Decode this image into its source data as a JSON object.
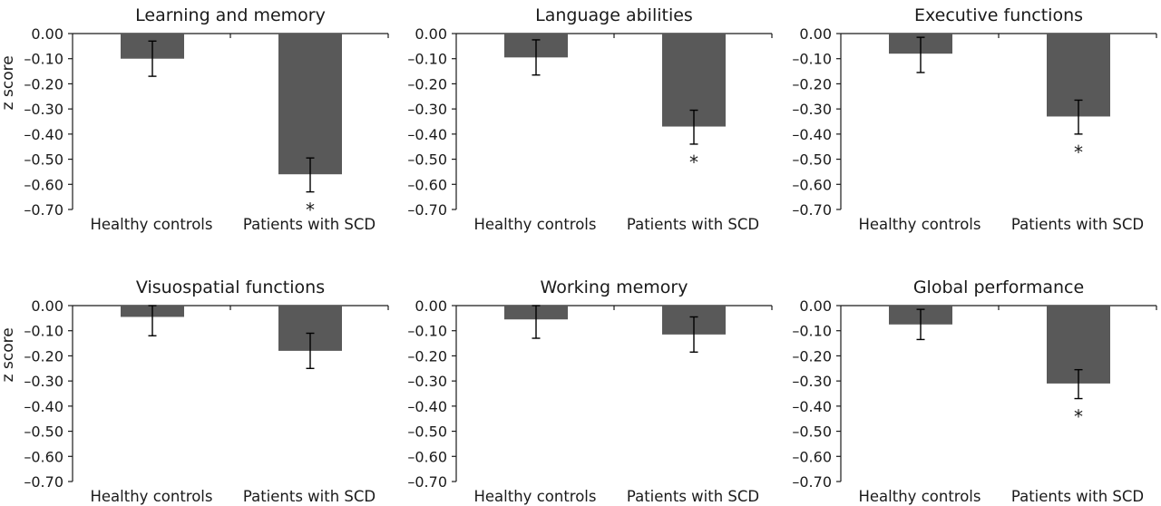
{
  "chart_data": {
    "type": "bar",
    "layout": "2x3 grid of panels",
    "ylabel": "z score",
    "ylim": [
      -0.7,
      0.0
    ],
    "yticks": [
      "0.00",
      "-0.10",
      "-0.20",
      "-0.30",
      "-0.40",
      "-0.50",
      "-0.60",
      "-0.70"
    ],
    "ytick_values": [
      0,
      -0.1,
      -0.2,
      -0.3,
      -0.4,
      -0.5,
      -0.6,
      -0.7
    ],
    "categories": [
      "Healthy controls",
      "Patients with SCD"
    ],
    "significance_marker": "*",
    "grid": false,
    "panels": [
      {
        "title": "Learning and memory",
        "values": [
          -0.1,
          -0.56
        ],
        "error_low": [
          -0.17,
          -0.63
        ],
        "error_high": [
          -0.03,
          -0.495
        ],
        "significant": [
          false,
          true
        ]
      },
      {
        "title": "Language abilities",
        "values": [
          -0.095,
          -0.37
        ],
        "error_low": [
          -0.165,
          -0.44
        ],
        "error_high": [
          -0.025,
          -0.305
        ],
        "significant": [
          false,
          true
        ]
      },
      {
        "title": "Executive functions",
        "values": [
          -0.08,
          -0.33
        ],
        "error_low": [
          -0.155,
          -0.4
        ],
        "error_high": [
          -0.015,
          -0.265
        ],
        "significant": [
          false,
          true
        ]
      },
      {
        "title": "Visuospatial functions",
        "values": [
          -0.045,
          -0.18
        ],
        "error_low": [
          -0.12,
          -0.25
        ],
        "error_high": [
          0.0,
          -0.11
        ],
        "significant": [
          false,
          false
        ]
      },
      {
        "title": "Working memory",
        "values": [
          -0.055,
          -0.115
        ],
        "error_low": [
          -0.13,
          -0.185
        ],
        "error_high": [
          0.0,
          -0.045
        ],
        "significant": [
          false,
          false
        ]
      },
      {
        "title": "Global performance",
        "values": [
          -0.075,
          -0.31
        ],
        "error_low": [
          -0.135,
          -0.37
        ],
        "error_high": [
          -0.015,
          -0.255
        ],
        "significant": [
          false,
          true
        ]
      }
    ]
  },
  "colors": {
    "bar": "#595959",
    "error_bar": "#000000",
    "axis": "#1a1a1a"
  }
}
